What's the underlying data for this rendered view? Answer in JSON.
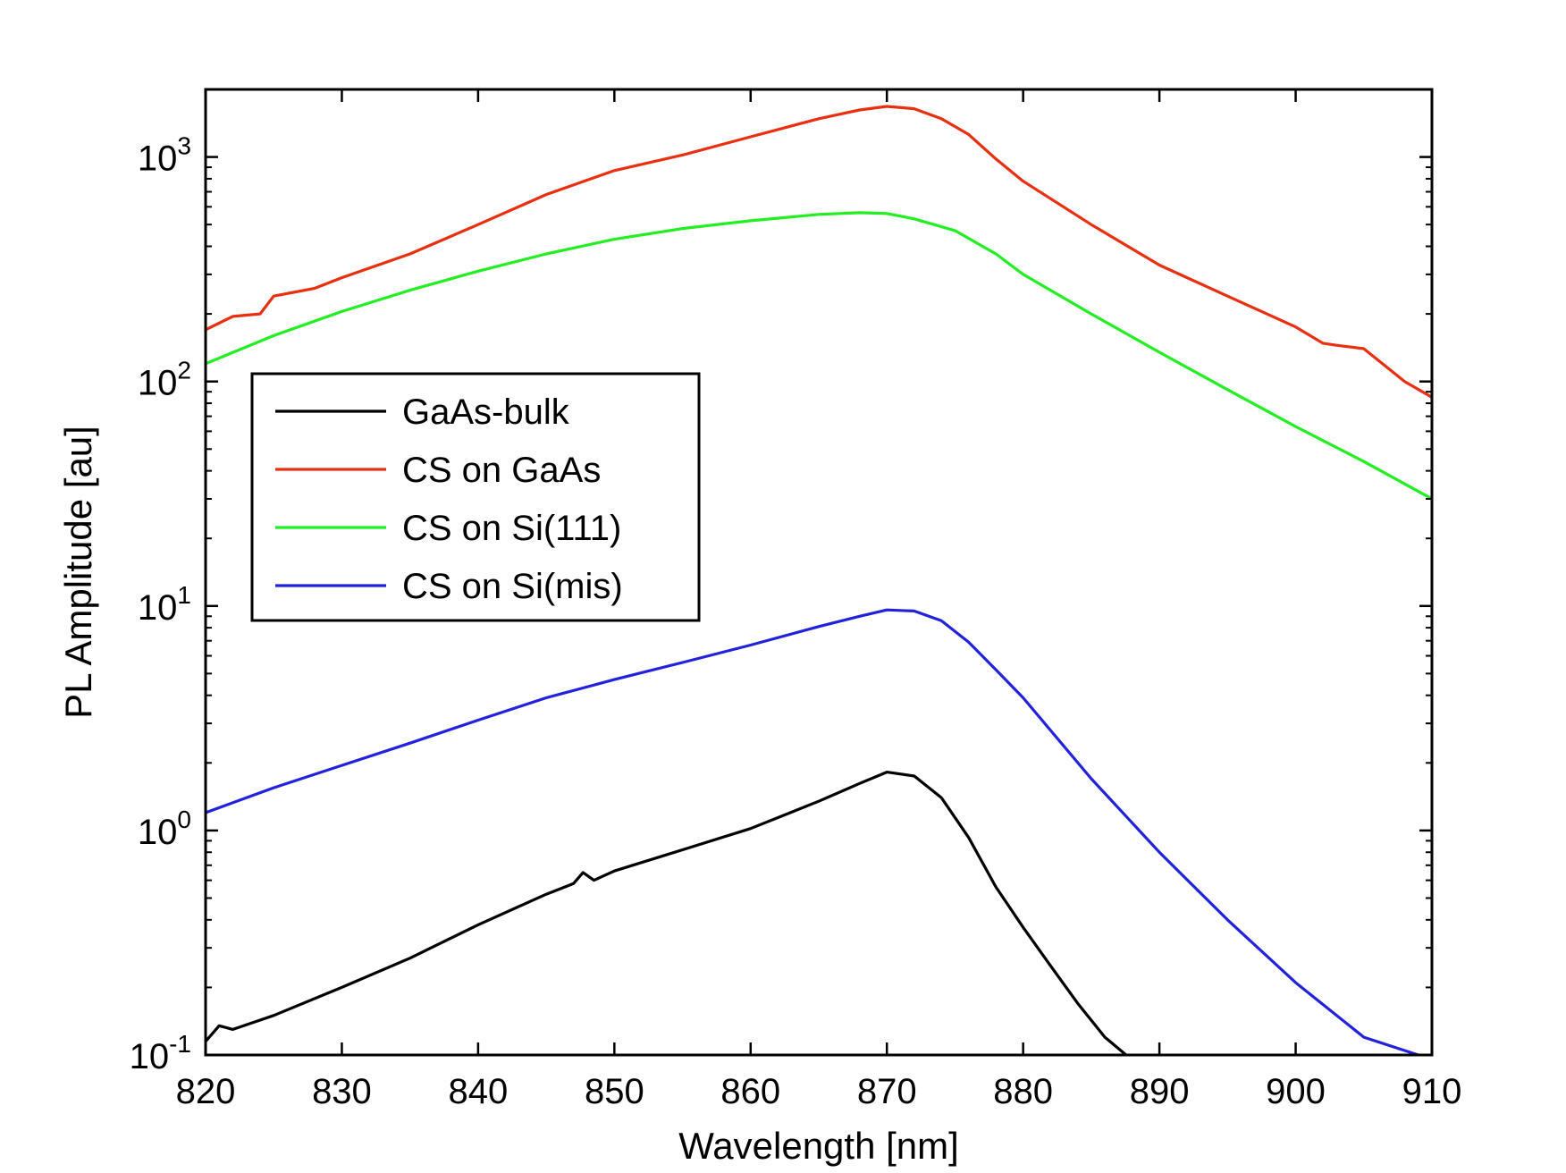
{
  "chart_data": {
    "type": "line",
    "xlabel": "Wavelength [nm]",
    "ylabel": "PL Amplitude [au]",
    "xlim": [
      820,
      910
    ],
    "ylim": [
      0.1,
      2000
    ],
    "yscale": "log",
    "grid": false,
    "legend_position": "center-left",
    "x_ticks": [
      820,
      830,
      840,
      850,
      860,
      870,
      880,
      890,
      900,
      910
    ],
    "y_ticks": [
      {
        "value": 0.1,
        "base": "10",
        "exp": "-1"
      },
      {
        "value": 1,
        "base": "10",
        "exp": "0"
      },
      {
        "value": 10,
        "base": "10",
        "exp": "1"
      },
      {
        "value": 100,
        "base": "10",
        "exp": "2"
      },
      {
        "value": 1000,
        "base": "10",
        "exp": "3"
      }
    ],
    "series": [
      {
        "name": "GaAs-bulk",
        "color": "#000000",
        "x": [
          820,
          821,
          822,
          825,
          830,
          835,
          840,
          845,
          847,
          847.7,
          848.5,
          850,
          855,
          860,
          865,
          868,
          870,
          872,
          874,
          876,
          878,
          880,
          882,
          884,
          886,
          888
        ],
        "y": [
          0.115,
          0.135,
          0.13,
          0.15,
          0.2,
          0.27,
          0.38,
          0.52,
          0.58,
          0.65,
          0.6,
          0.66,
          0.82,
          1.02,
          1.35,
          1.62,
          1.82,
          1.75,
          1.4,
          0.93,
          0.56,
          0.37,
          0.25,
          0.17,
          0.12,
          0.095
        ]
      },
      {
        "name": "CS on GaAs",
        "color": "#e83010",
        "x": [
          820,
          822,
          824,
          825,
          828,
          830,
          835,
          840,
          845,
          850,
          855,
          860,
          865,
          868,
          870,
          872,
          874,
          876,
          878,
          880,
          885,
          890,
          895,
          900,
          902,
          903,
          905,
          908,
          910
        ],
        "y": [
          170,
          195,
          200,
          240,
          260,
          290,
          370,
          500,
          680,
          870,
          1020,
          1230,
          1480,
          1620,
          1680,
          1640,
          1480,
          1260,
          980,
          780,
          500,
          330,
          240,
          175,
          148,
          145,
          140,
          100,
          85
        ]
      },
      {
        "name": "CS on Si(111)",
        "color": "#22ee22",
        "x": [
          820,
          825,
          830,
          835,
          840,
          845,
          850,
          855,
          860,
          865,
          868,
          870,
          872,
          875,
          878,
          880,
          885,
          890,
          895,
          900,
          905,
          910
        ],
        "y": [
          120,
          160,
          205,
          255,
          310,
          370,
          430,
          480,
          520,
          555,
          565,
          560,
          530,
          470,
          370,
          300,
          200,
          135,
          92,
          63,
          44,
          30
        ]
      },
      {
        "name": "CS on Si(mis)",
        "color": "#2222dd",
        "x": [
          820,
          825,
          830,
          835,
          840,
          845,
          850,
          855,
          860,
          865,
          868,
          870,
          872,
          874,
          876,
          878,
          880,
          885,
          890,
          895,
          900,
          905,
          909
        ],
        "y": [
          1.2,
          1.55,
          1.95,
          2.45,
          3.1,
          3.9,
          4.7,
          5.6,
          6.7,
          8.1,
          9.0,
          9.6,
          9.5,
          8.6,
          6.9,
          5.2,
          3.9,
          1.7,
          0.8,
          0.4,
          0.21,
          0.12,
          0.1
        ]
      }
    ]
  }
}
